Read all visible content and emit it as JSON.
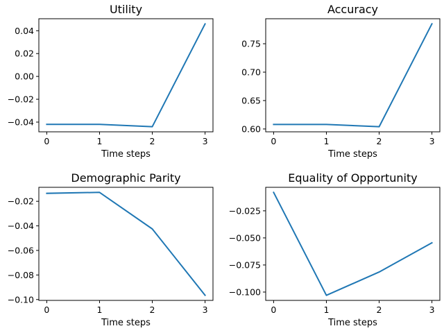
{
  "series_color": "#1f77b4",
  "chart_data": [
    {
      "type": "line",
      "title": "Utility",
      "xlabel": "Time steps",
      "ylabel": "",
      "x": [
        0,
        1,
        2,
        3
      ],
      "series": [
        {
          "values": [
            -0.042,
            -0.042,
            -0.044,
            0.046
          ]
        }
      ],
      "xlim": [
        -0.15,
        3.15
      ],
      "ylim": [
        -0.0485,
        0.0505
      ],
      "xticks": [
        0,
        1,
        2,
        3
      ],
      "xtick_labels": [
        "0",
        "1",
        "2",
        "3"
      ],
      "yticks": [
        -0.04,
        -0.02,
        0.0,
        0.02,
        0.04
      ],
      "ytick_labels": [
        "−0.04",
        "−0.02",
        "0.00",
        "0.02",
        "0.04"
      ],
      "grid": false,
      "legend": "none"
    },
    {
      "type": "line",
      "title": "Accuracy",
      "xlabel": "Time steps",
      "ylabel": "",
      "x": [
        0,
        1,
        2,
        3
      ],
      "series": [
        {
          "values": [
            0.608,
            0.608,
            0.604,
            0.785
          ]
        }
      ],
      "xlim": [
        -0.15,
        3.15
      ],
      "ylim": [
        0.595,
        0.794
      ],
      "xticks": [
        0,
        1,
        2,
        3
      ],
      "xtick_labels": [
        "0",
        "1",
        "2",
        "3"
      ],
      "yticks": [
        0.6,
        0.65,
        0.7,
        0.75
      ],
      "ytick_labels": [
        "0.60",
        "0.65",
        "0.70",
        "0.75"
      ],
      "grid": false,
      "legend": "none"
    },
    {
      "type": "line",
      "title": "Demographic Parity",
      "xlabel": "Time steps",
      "ylabel": "",
      "x": [
        0,
        1,
        2,
        3
      ],
      "series": [
        {
          "values": [
            -0.0135,
            -0.0127,
            -0.0425,
            -0.0965
          ]
        }
      ],
      "xlim": [
        -0.15,
        3.15
      ],
      "ylim": [
        -0.1007,
        -0.0086
      ],
      "xticks": [
        0,
        1,
        2,
        3
      ],
      "xtick_labels": [
        "0",
        "1",
        "2",
        "3"
      ],
      "yticks": [
        -0.1,
        -0.08,
        -0.06,
        -0.04,
        -0.02
      ],
      "ytick_labels": [
        "−0.10",
        "−0.08",
        "−0.06",
        "−0.04",
        "−0.02"
      ],
      "grid": false,
      "legend": "none"
    },
    {
      "type": "line",
      "title": "Equality of Opportunity",
      "xlabel": "Time steps",
      "ylabel": "",
      "x": [
        0,
        1,
        2,
        3
      ],
      "series": [
        {
          "values": [
            -0.008,
            -0.103,
            -0.0815,
            -0.0545
          ]
        }
      ],
      "xlim": [
        -0.15,
        3.15
      ],
      "ylim": [
        -0.1077,
        -0.0033
      ],
      "xticks": [
        0,
        1,
        2,
        3
      ],
      "xtick_labels": [
        "0",
        "1",
        "2",
        "3"
      ],
      "yticks": [
        -0.1,
        -0.075,
        -0.05,
        -0.025
      ],
      "ytick_labels": [
        "−0.100",
        "−0.075",
        "−0.050",
        "−0.025"
      ],
      "grid": false,
      "legend": "none"
    }
  ]
}
